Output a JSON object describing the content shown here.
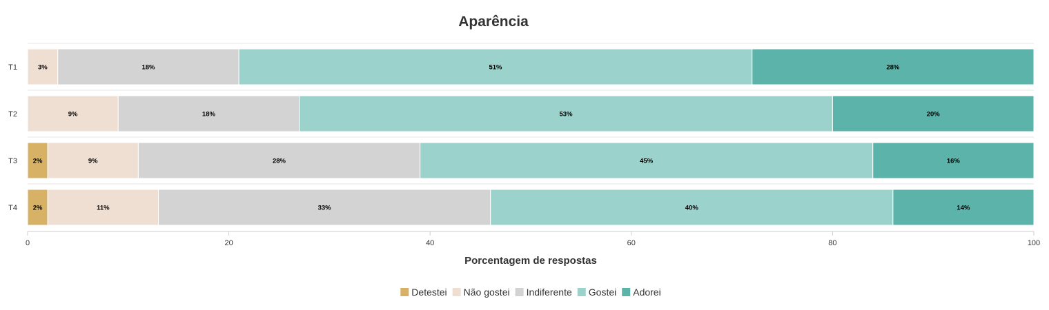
{
  "chart_data": {
    "type": "bar",
    "orientation": "horizontal",
    "stacked": true,
    "title": "Aparência",
    "xlabel": "Porcentagem de respostas",
    "ylabel": "",
    "xlim": [
      0,
      100
    ],
    "xticks": [
      0,
      20,
      40,
      60,
      80,
      100
    ],
    "categories": [
      "T1",
      "T2",
      "T3",
      "T4"
    ],
    "series": [
      {
        "name": "Detestei",
        "color": "#d7b266",
        "values": [
          0,
          0,
          2,
          2
        ]
      },
      {
        "name": "Não gostei",
        "color": "#efdfd3",
        "values": [
          3,
          9,
          9,
          11
        ]
      },
      {
        "name": "Indiferente",
        "color": "#d3d3d3",
        "values": [
          18,
          18,
          28,
          33
        ]
      },
      {
        "name": "Gostei",
        "color": "#9bd3cc",
        "values": [
          51,
          53,
          45,
          40
        ]
      },
      {
        "name": "Adorei",
        "color": "#5bb3a9",
        "values": [
          28,
          20,
          16,
          14
        ]
      }
    ],
    "segment_labels": [
      [
        "",
        "3%",
        "18%",
        "51%",
        "28%"
      ],
      [
        "",
        "9%",
        "18%",
        "53%",
        "20%"
      ],
      [
        "2%",
        "9%",
        "28%",
        "45%",
        "16%"
      ],
      [
        "2%",
        "11%",
        "33%",
        "40%",
        "14%"
      ]
    ],
    "legend_position": "bottom-center",
    "grid": false
  }
}
